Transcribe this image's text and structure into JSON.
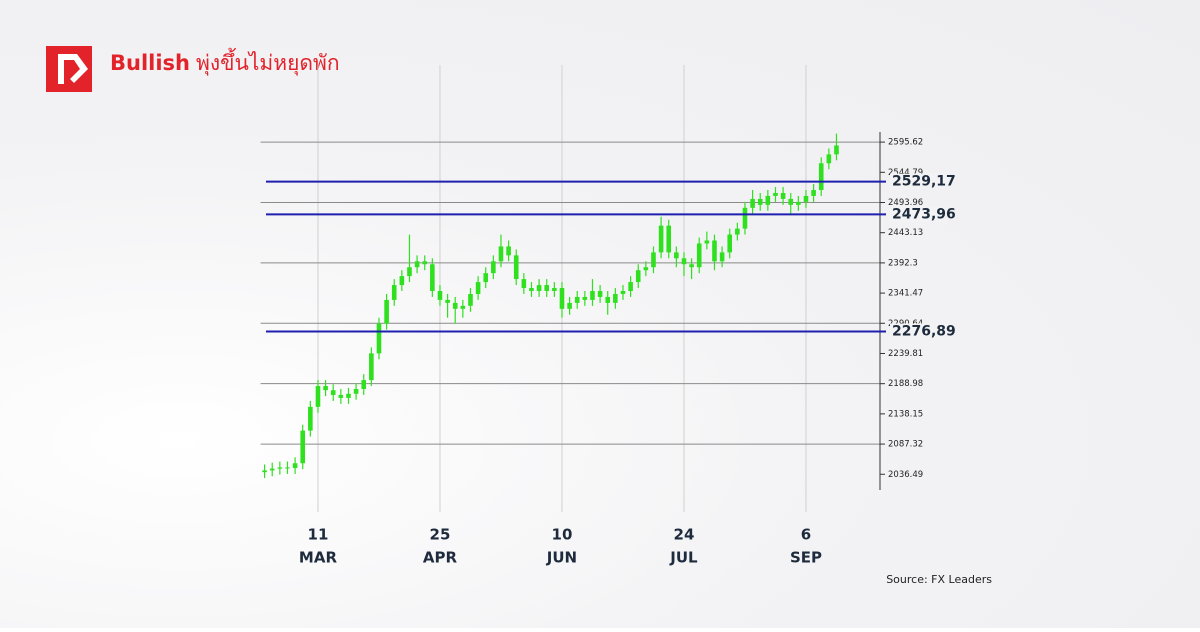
{
  "header": {
    "title_bold": "Bullish",
    "title_rest": "พุ่งขึ้นไม่หยุดพัก"
  },
  "chart_data": {
    "type": "candlestick",
    "color": "#2fe01f",
    "categories": [
      null,
      null,
      null,
      null,
      null,
      null,
      null,
      [
        "11",
        "MAR"
      ],
      null,
      null,
      null,
      null,
      null,
      null,
      null,
      null,
      null,
      null,
      null,
      null,
      null,
      null,
      null,
      [
        "25",
        "APR"
      ],
      null,
      null,
      null,
      null,
      null,
      null,
      null,
      null,
      null,
      null,
      null,
      null,
      null,
      null,
      null,
      [
        "10",
        "JUN"
      ],
      null,
      null,
      null,
      null,
      null,
      null,
      null,
      null,
      null,
      null,
      null,
      null,
      null,
      null,
      null,
      [
        "24",
        "JUL"
      ],
      null,
      null,
      null,
      null,
      null,
      null,
      null,
      null,
      null,
      null,
      null,
      null,
      null,
      null,
      null,
      [
        "6",
        "SEP"
      ],
      null,
      null,
      null,
      null
    ],
    "open": [
      2040,
      2043,
      2046,
      2048,
      2047,
      2055,
      2110,
      2150,
      2185,
      2178,
      2170,
      2165,
      2172,
      2180,
      2195,
      2240,
      2290,
      2330,
      2355,
      2370,
      2385,
      2395,
      2390,
      2345,
      2330,
      2325,
      2315,
      2320,
      2340,
      2360,
      2375,
      2395,
      2420,
      2405,
      2365,
      2350,
      2345,
      2355,
      2345,
      2350,
      2315,
      2325,
      2335,
      2330,
      2345,
      2335,
      2325,
      2340,
      2345,
      2360,
      2380,
      2385,
      2410,
      2455,
      2410,
      2400,
      2390,
      2385,
      2425,
      2430,
      2395,
      2410,
      2440,
      2450,
      2485,
      2500,
      2490,
      2505,
      2510,
      2500,
      2490,
      2495,
      2505,
      2515,
      2560,
      2575
    ],
    "high": [
      2053,
      2056,
      2058,
      2058,
      2065,
      2120,
      2160,
      2195,
      2195,
      2188,
      2180,
      2182,
      2190,
      2205,
      2250,
      2300,
      2340,
      2365,
      2380,
      2440,
      2405,
      2405,
      2400,
      2355,
      2340,
      2335,
      2330,
      2350,
      2370,
      2385,
      2405,
      2440,
      2430,
      2415,
      2375,
      2360,
      2365,
      2365,
      2360,
      2360,
      2335,
      2345,
      2345,
      2365,
      2355,
      2345,
      2350,
      2355,
      2370,
      2390,
      2395,
      2420,
      2470,
      2465,
      2420,
      2410,
      2400,
      2435,
      2445,
      2440,
      2420,
      2450,
      2460,
      2495,
      2515,
      2510,
      2515,
      2520,
      2520,
      2510,
      2505,
      2515,
      2525,
      2570,
      2585,
      2610
    ],
    "low": [
      2030,
      2033,
      2036,
      2037,
      2037,
      2045,
      2100,
      2140,
      2168,
      2160,
      2155,
      2155,
      2162,
      2170,
      2185,
      2230,
      2280,
      2320,
      2345,
      2360,
      2375,
      2380,
      2335,
      2320,
      2300,
      2290,
      2300,
      2310,
      2330,
      2350,
      2365,
      2385,
      2395,
      2355,
      2340,
      2335,
      2335,
      2335,
      2335,
      2300,
      2305,
      2315,
      2320,
      2320,
      2325,
      2305,
      2315,
      2330,
      2335,
      2350,
      2370,
      2375,
      2400,
      2400,
      2385,
      2370,
      2365,
      2375,
      2415,
      2380,
      2385,
      2400,
      2430,
      2440,
      2475,
      2480,
      2480,
      2495,
      2490,
      2475,
      2480,
      2485,
      2495,
      2505,
      2550,
      2565
    ],
    "close": [
      2043,
      2046,
      2048,
      2047,
      2055,
      2110,
      2150,
      2185,
      2178,
      2170,
      2165,
      2172,
      2180,
      2195,
      2240,
      2290,
      2330,
      2355,
      2370,
      2385,
      2395,
      2390,
      2345,
      2330,
      2325,
      2315,
      2320,
      2340,
      2360,
      2375,
      2395,
      2420,
      2405,
      2365,
      2350,
      2345,
      2355,
      2345,
      2350,
      2315,
      2325,
      2335,
      2330,
      2345,
      2335,
      2325,
      2340,
      2345,
      2360,
      2380,
      2385,
      2410,
      2455,
      2410,
      2400,
      2390,
      2385,
      2425,
      2430,
      2395,
      2410,
      2440,
      2450,
      2485,
      2500,
      2490,
      2505,
      2510,
      2500,
      2490,
      2495,
      2505,
      2515,
      2560,
      2575,
      2590
    ],
    "ylim": [
      2010,
      2616
    ],
    "yticks": [
      2036.49,
      2087.32,
      2138.15,
      2188.98,
      2239.81,
      2290.64,
      2341.47,
      2392.3,
      2443.13,
      2493.96,
      2544.79,
      2595.62
    ],
    "gridlines": [
      2087.32,
      2188.98,
      2290.64,
      2392.3,
      2493.96,
      2595.62
    ],
    "levels": [
      {
        "value": 2529.17,
        "label": "2529,17"
      },
      {
        "value": 2473.96,
        "label": "2473,96"
      },
      {
        "value": 2276.89,
        "label": "2276,89"
      }
    ],
    "level_color": "#1f1fb0",
    "source": "Source: FX Leaders"
  }
}
